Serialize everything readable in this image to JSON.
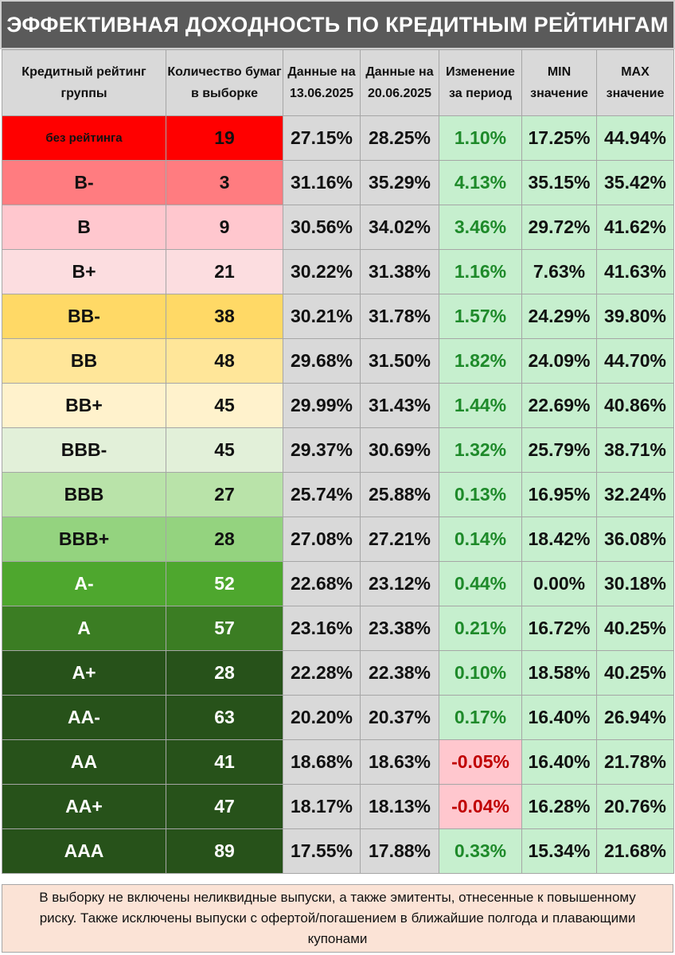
{
  "title": "ЭФФЕКТИВНАЯ ДОХОДНОСТЬ ПО КРЕДИТНЫМ РЕЙТИНГАМ",
  "columns": [
    "Кредитный рейтинг группы",
    "Количество бумаг в выборке",
    "Данные на 13.06.2025",
    "Данные на 20.06.2025",
    "Изменение за период",
    "MIN значение",
    "MAX значение"
  ],
  "chart_data": {
    "type": "table",
    "title": "ЭФФЕКТИВНАЯ ДОХОДНОСТЬ ПО КРЕДИТНЫМ РЕЙТИНГАМ",
    "rows": [
      {
        "rating": "без рейтинга",
        "count": "19",
        "d1": "27.15%",
        "d2": "28.25%",
        "change": "1.10%",
        "min": "17.25%",
        "max": "44.94%",
        "color": "#ff0000",
        "text_color": "#111111"
      },
      {
        "rating": "B-",
        "count": "3",
        "d1": "31.16%",
        "d2": "35.29%",
        "change": "4.13%",
        "min": "35.15%",
        "max": "35.42%",
        "color": "#ff7c80",
        "text_color": "#111111"
      },
      {
        "rating": "B",
        "count": "9",
        "d1": "30.56%",
        "d2": "34.02%",
        "change": "3.46%",
        "min": "29.72%",
        "max": "41.62%",
        "color": "#ffc7ce",
        "text_color": "#111111"
      },
      {
        "rating": "B+",
        "count": "21",
        "d1": "30.22%",
        "d2": "31.38%",
        "change": "1.16%",
        "min": "7.63%",
        "max": "41.63%",
        "color": "#fcdde0",
        "text_color": "#111111"
      },
      {
        "rating": "BB-",
        "count": "38",
        "d1": "30.21%",
        "d2": "31.78%",
        "change": "1.57%",
        "min": "24.29%",
        "max": "39.80%",
        "color": "#ffd966",
        "text_color": "#111111"
      },
      {
        "rating": "BB",
        "count": "48",
        "d1": "29.68%",
        "d2": "31.50%",
        "change": "1.82%",
        "min": "24.09%",
        "max": "44.70%",
        "color": "#ffe699",
        "text_color": "#111111"
      },
      {
        "rating": "BB+",
        "count": "45",
        "d1": "29.99%",
        "d2": "31.43%",
        "change": "1.44%",
        "min": "22.69%",
        "max": "40.86%",
        "color": "#fff2cc",
        "text_color": "#111111"
      },
      {
        "rating": "BBB-",
        "count": "45",
        "d1": "29.37%",
        "d2": "30.69%",
        "change": "1.32%",
        "min": "25.79%",
        "max": "38.71%",
        "color": "#e2f0d9",
        "text_color": "#111111"
      },
      {
        "rating": "BBB",
        "count": "27",
        "d1": "25.74%",
        "d2": "25.88%",
        "change": "0.13%",
        "min": "16.95%",
        "max": "32.24%",
        "color": "#b9e3a9",
        "text_color": "#111111"
      },
      {
        "rating": "BBB+",
        "count": "28",
        "d1": "27.08%",
        "d2": "27.21%",
        "change": "0.14%",
        "min": "18.42%",
        "max": "36.08%",
        "color": "#94d37f",
        "text_color": "#111111"
      },
      {
        "rating": "A-",
        "count": "52",
        "d1": "22.68%",
        "d2": "23.12%",
        "change": "0.44%",
        "min": "0.00%",
        "max": "30.18%",
        "color": "#4ea72e",
        "text_color": "#ffffff"
      },
      {
        "rating": "A",
        "count": "57",
        "d1": "23.16%",
        "d2": "23.38%",
        "change": "0.21%",
        "min": "16.72%",
        "max": "40.25%",
        "color": "#3b7d23",
        "text_color": "#ffffff"
      },
      {
        "rating": "A+",
        "count": "28",
        "d1": "22.28%",
        "d2": "22.38%",
        "change": "0.10%",
        "min": "18.58%",
        "max": "40.25%",
        "color": "#27521a",
        "text_color": "#ffffff"
      },
      {
        "rating": "AA-",
        "count": "63",
        "d1": "20.20%",
        "d2": "20.37%",
        "change": "0.17%",
        "min": "16.40%",
        "max": "26.94%",
        "color": "#27521a",
        "text_color": "#ffffff"
      },
      {
        "rating": "AA",
        "count": "41",
        "d1": "18.68%",
        "d2": "18.63%",
        "change": "-0.05%",
        "min": "16.40%",
        "max": "21.78%",
        "color": "#27521a",
        "text_color": "#ffffff"
      },
      {
        "rating": "AA+",
        "count": "47",
        "d1": "18.17%",
        "d2": "18.13%",
        "change": "-0.04%",
        "min": "16.28%",
        "max": "20.76%",
        "color": "#27521a",
        "text_color": "#ffffff"
      },
      {
        "rating": "AAA",
        "count": "89",
        "d1": "17.55%",
        "d2": "17.88%",
        "change": "0.33%",
        "min": "15.34%",
        "max": "21.68%",
        "color": "#27521a",
        "text_color": "#ffffff"
      }
    ]
  },
  "colors": {
    "change_positive_bg": "#c6efce",
    "change_negative_bg": "#ffc7ce"
  },
  "footnote": "В выборку не включены неликвидные выпуски, а также эмитенты, отнесенные к повышенному риску. Также исключены выпуски с офертой/погашением в ближайшие полгода и плавающими купонами"
}
